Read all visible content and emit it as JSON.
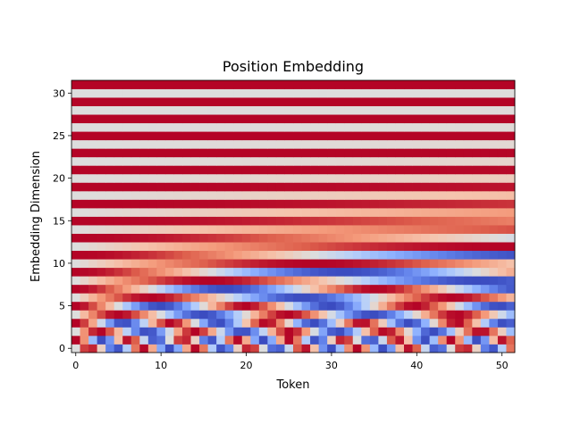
{
  "chart_data": {
    "type": "heatmap",
    "title": "Position Embedding",
    "xlabel": "Token",
    "ylabel": "Embedding Dimension",
    "n_positions": 52,
    "n_dims": 32,
    "xlim": [
      -0.5,
      51.5
    ],
    "ylim": [
      -0.5,
      31.5
    ],
    "xticks": [
      0,
      10,
      20,
      30,
      40,
      50
    ],
    "yticks": [
      0,
      5,
      10,
      15,
      20,
      25,
      30
    ],
    "colormap": "coolwarm",
    "value_range": [
      -1,
      1
    ],
    "encoding": "sinusoidal",
    "base": 10000,
    "origin": "lower",
    "grid": false,
    "colorbar": false
  }
}
